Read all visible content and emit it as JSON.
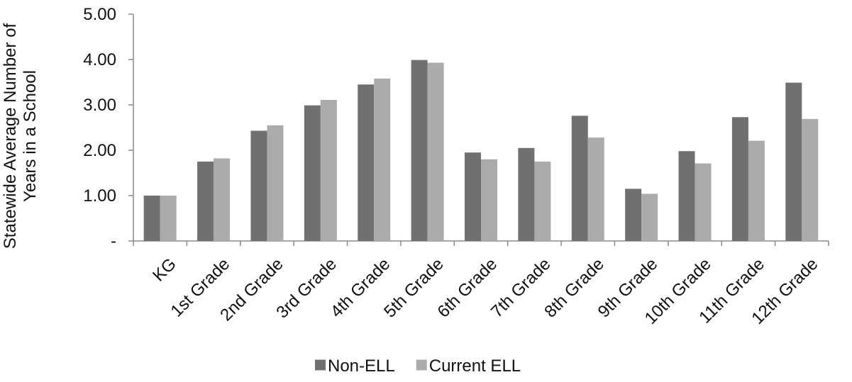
{
  "chart_data": {
    "type": "bar",
    "title": "",
    "xlabel": "",
    "ylabel": "Statewide Average Number of Years in a School",
    "ylim": [
      0,
      5
    ],
    "yticks": [
      0,
      1,
      2,
      3,
      4,
      5
    ],
    "ytick_labels": [
      "-",
      "1.00",
      "2.00",
      "3.00",
      "4.00",
      "5.00"
    ],
    "grid": false,
    "legend_position": "bottom",
    "categories": [
      "KG",
      "1st Grade",
      "2nd Grade",
      "3rd Grade",
      "4th Grade",
      "5th Grade",
      "6th Grade",
      "7th Grade",
      "8th Grade",
      "9th Grade",
      "10th Grade",
      "11th Grade",
      "12th Grade"
    ],
    "series": [
      {
        "name": "Non-ELL",
        "color": "#707070",
        "values": [
          1.0,
          1.75,
          2.43,
          2.99,
          3.45,
          3.99,
          1.95,
          2.05,
          2.76,
          1.15,
          1.98,
          2.73,
          3.49
        ]
      },
      {
        "name": "Current ELL",
        "color": "#ababab",
        "values": [
          1.0,
          1.82,
          2.55,
          3.11,
          3.58,
          3.93,
          1.8,
          1.75,
          2.28,
          1.04,
          1.71,
          2.21,
          2.69
        ]
      }
    ]
  }
}
